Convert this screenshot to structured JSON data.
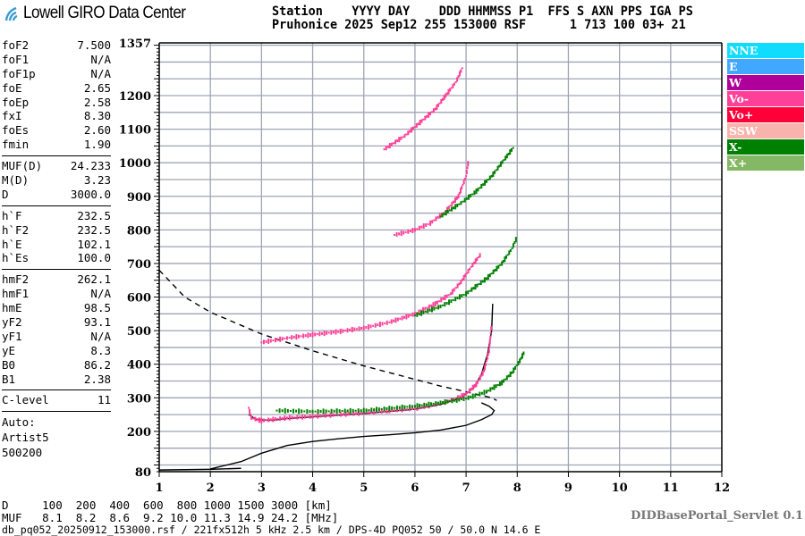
{
  "header": {
    "logo_text": "Lowell GIRO Data Center",
    "row1": "Station    YYYY DAY    DDD HHMMSS P1  FFS S AXN PPS IGA PS",
    "row2": "Pruhonice 2025 Sep12 255 153000 RSF      1 713 100 03+ 21"
  },
  "params": {
    "group1": [
      {
        "name": "foF2",
        "value": "7.500"
      },
      {
        "name": "foF1",
        "value": "N/A"
      },
      {
        "name": "foF1p",
        "value": "N/A"
      },
      {
        "name": "foE",
        "value": "2.65"
      },
      {
        "name": "foEp",
        "value": "2.58"
      },
      {
        "name": "fxI",
        "value": "8.30"
      },
      {
        "name": "foEs",
        "value": "2.60"
      },
      {
        "name": "fmin",
        "value": "1.90"
      }
    ],
    "group2": [
      {
        "name": "MUF(D)",
        "value": "24.233"
      },
      {
        "name": "M(D)",
        "value": "3.23"
      },
      {
        "name": "D",
        "value": "3000.0"
      }
    ],
    "group3": [
      {
        "name": "h`F",
        "value": "232.5"
      },
      {
        "name": "h`F2",
        "value": "232.5"
      },
      {
        "name": "h`E",
        "value": "102.1"
      },
      {
        "name": "h`Es",
        "value": "100.0"
      }
    ],
    "group4": [
      {
        "name": "hmF2",
        "value": "262.1"
      },
      {
        "name": "hmF1",
        "value": "N/A"
      },
      {
        "name": "hmE",
        "value": "98.5"
      },
      {
        "name": "yF2",
        "value": "93.1"
      },
      {
        "name": "yF1",
        "value": "N/A"
      },
      {
        "name": "yE",
        "value": "8.3"
      },
      {
        "name": "B0",
        "value": "86.2"
      },
      {
        "name": "B1",
        "value": "2.38"
      }
    ],
    "group5": [
      {
        "name": "C-level",
        "value": "11"
      }
    ],
    "auto": [
      "Auto:",
      "Artist5",
      "500200"
    ]
  },
  "legend": [
    {
      "label": "NNE",
      "color": "#10dcff"
    },
    {
      "label": "E",
      "color": "#40a8ff"
    },
    {
      "label": "W",
      "color": "#b0009c"
    },
    {
      "label": "Vo-",
      "color": "#ff4098"
    },
    {
      "label": "Vo+",
      "color": "#ff0038"
    },
    {
      "label": "SSW",
      "color": "#f8b4ac"
    },
    {
      "label": "X-",
      "color": "#008000"
    },
    {
      "label": "X+",
      "color": "#84b864"
    }
  ],
  "footer": {
    "d_row": "D     100  200  400  600  800 1000 1500 3000 [km]",
    "muf_row": "MUF   8.1  8.2  8.6  9.2 10.0 11.3 14.9 24.2 [MHz]",
    "info": "db_pq052_20250912_153000.rsf / 221fx512h 5 kHz 2.5 km / DPS-4D PQ052 50 / 50.0 N 14.6 E",
    "servlet": "DIDBasePortal_Servlet 0.1"
  },
  "chart_data": {
    "type": "scatter",
    "xlabel": "",
    "ylabel": "",
    "xlim": [
      1,
      12
    ],
    "ylim": [
      80,
      1357
    ],
    "x_ticks": [
      "1",
      "2",
      "3",
      "4",
      "5",
      "6",
      "7",
      "8",
      "9",
      "10",
      "11",
      "12"
    ],
    "y_ticks": [
      "80",
      "200",
      "300",
      "400",
      "500",
      "600",
      "700",
      "800",
      "900",
      "1000",
      "1100",
      "1200",
      "1357"
    ],
    "grid": true,
    "legend_placement": "right",
    "series": [
      {
        "name": "Vo-",
        "color": "#ff4098",
        "points": [
          [
            2.75,
            270
          ],
          [
            2.8,
            240
          ],
          [
            3.0,
            232
          ],
          [
            3.5,
            240
          ],
          [
            4.0,
            245
          ],
          [
            4.5,
            250
          ],
          [
            5.0,
            255
          ],
          [
            5.5,
            262
          ],
          [
            6.0,
            268
          ],
          [
            6.5,
            283
          ],
          [
            6.8,
            298
          ],
          [
            7.0,
            312
          ],
          [
            7.2,
            340
          ],
          [
            7.35,
            380
          ],
          [
            7.45,
            440
          ],
          [
            7.5,
            520
          ]
        ]
      },
      {
        "name": "Vo-",
        "color": "#ff4098",
        "points": [
          [
            3.0,
            465
          ],
          [
            3.5,
            478
          ],
          [
            4.0,
            488
          ],
          [
            4.5,
            497
          ],
          [
            5.0,
            508
          ],
          [
            5.5,
            525
          ],
          [
            6.0,
            550
          ],
          [
            6.4,
            580
          ],
          [
            6.7,
            610
          ],
          [
            6.9,
            645
          ],
          [
            7.1,
            690
          ],
          [
            7.3,
            730
          ]
        ]
      },
      {
        "name": "Vo-",
        "color": "#ff4098",
        "points": [
          [
            5.6,
            785
          ],
          [
            6.0,
            800
          ],
          [
            6.3,
            820
          ],
          [
            6.6,
            855
          ],
          [
            6.85,
            900
          ],
          [
            7.0,
            960
          ],
          [
            7.05,
            1010
          ]
        ]
      },
      {
        "name": "Vo-",
        "color": "#ff4098",
        "points": [
          [
            5.4,
            1040
          ],
          [
            5.8,
            1080
          ],
          [
            6.1,
            1120
          ],
          [
            6.4,
            1160
          ],
          [
            6.6,
            1200
          ],
          [
            6.8,
            1240
          ],
          [
            6.95,
            1290
          ]
        ]
      },
      {
        "name": "X-",
        "color": "#008000",
        "points": [
          [
            3.3,
            262
          ],
          [
            4.0,
            259
          ],
          [
            5.0,
            262
          ],
          [
            6.0,
            275
          ],
          [
            6.5,
            285
          ],
          [
            7.0,
            298
          ],
          [
            7.4,
            318
          ],
          [
            7.7,
            345
          ],
          [
            7.9,
            375
          ],
          [
            8.05,
            410
          ],
          [
            8.15,
            440
          ]
        ]
      },
      {
        "name": "X-",
        "color": "#008000",
        "points": [
          [
            6.0,
            545
          ],
          [
            6.5,
            572
          ],
          [
            7.0,
            610
          ],
          [
            7.4,
            655
          ],
          [
            7.7,
            700
          ],
          [
            7.9,
            745
          ],
          [
            8.0,
            780
          ]
        ]
      },
      {
        "name": "X-",
        "color": "#008000",
        "points": [
          [
            6.5,
            840
          ],
          [
            6.9,
            880
          ],
          [
            7.2,
            915
          ],
          [
            7.5,
            960
          ],
          [
            7.8,
            1020
          ],
          [
            7.95,
            1050
          ]
        ]
      }
    ],
    "curves": [
      {
        "style": "solid",
        "points": [
          [
            1.0,
            85
          ],
          [
            2.0,
            87
          ],
          [
            2.6,
            90
          ]
        ]
      },
      {
        "style": "solid",
        "points": [
          [
            2.0,
            88
          ],
          [
            2.6,
            110
          ],
          [
            3.0,
            135
          ],
          [
            3.5,
            158
          ],
          [
            4.0,
            170
          ],
          [
            4.5,
            178
          ],
          [
            5.0,
            185
          ],
          [
            5.5,
            190
          ],
          [
            6.0,
            196
          ],
          [
            6.5,
            204
          ],
          [
            7.0,
            218
          ],
          [
            7.3,
            235
          ],
          [
            7.5,
            250
          ],
          [
            7.55,
            262
          ],
          [
            7.45,
            275
          ],
          [
            7.3,
            285
          ]
        ]
      },
      {
        "style": "solid",
        "points": [
          [
            2.75,
            250
          ],
          [
            2.9,
            235
          ],
          [
            3.2,
            233
          ],
          [
            3.5,
            238
          ],
          [
            4.0,
            243
          ],
          [
            5.0,
            253
          ],
          [
            6.0,
            266
          ],
          [
            6.5,
            280
          ],
          [
            6.9,
            300
          ],
          [
            7.15,
            330
          ],
          [
            7.3,
            370
          ],
          [
            7.42,
            430
          ],
          [
            7.5,
            500
          ],
          [
            7.52,
            580
          ]
        ]
      },
      {
        "style": "dashed",
        "points": [
          [
            1.0,
            680
          ],
          [
            1.5,
            600
          ],
          [
            2.0,
            555
          ],
          [
            3.0,
            490
          ],
          [
            4.0,
            440
          ],
          [
            5.0,
            395
          ],
          [
            6.0,
            355
          ],
          [
            6.5,
            335
          ],
          [
            7.0,
            318
          ],
          [
            7.5,
            300
          ],
          [
            7.6,
            292
          ]
        ]
      }
    ]
  }
}
